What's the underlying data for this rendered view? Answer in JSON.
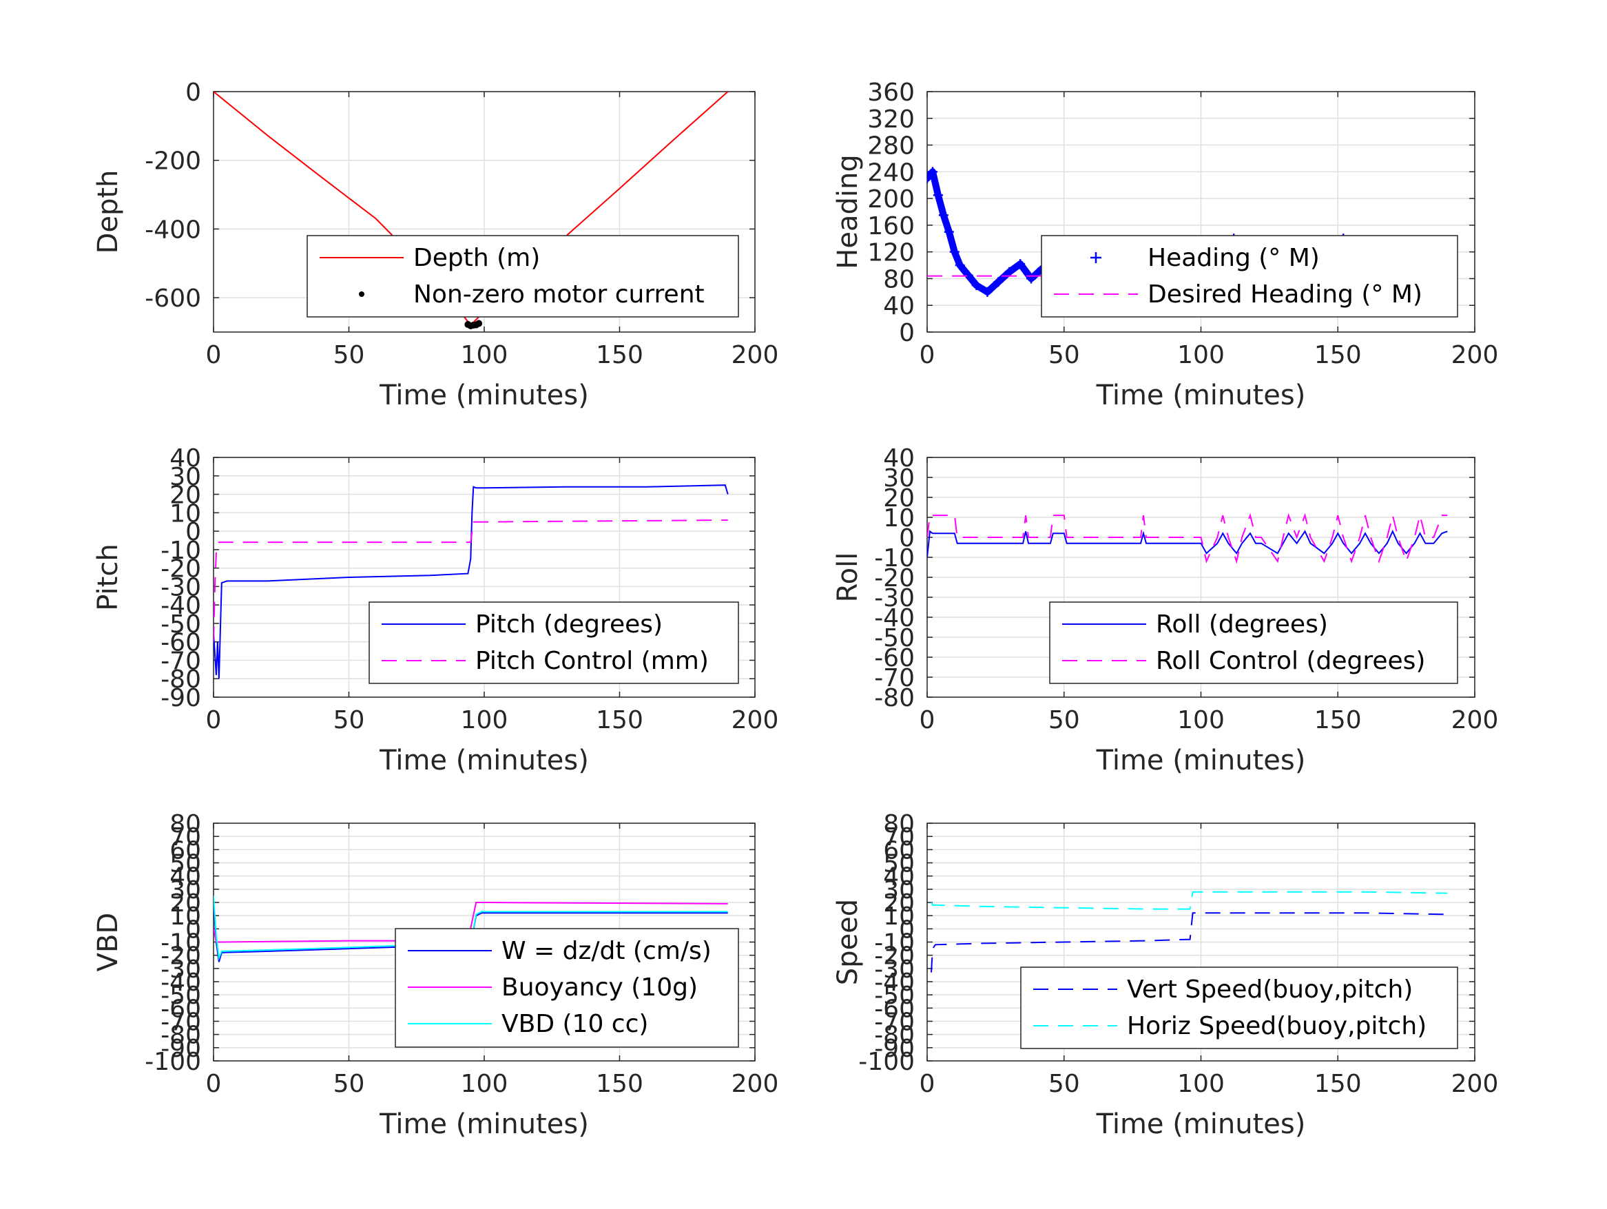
{
  "chart_data": [
    {
      "id": "depth",
      "type": "line",
      "title": "",
      "xlabel": "Time (minutes)",
      "ylabel": "Depth",
      "xlim": [
        0,
        200
      ],
      "ylim": [
        -700,
        0
      ],
      "xticks": [
        0,
        50,
        100,
        150,
        200
      ],
      "xtick_labels": [
        "0",
        "50",
        "100",
        "150",
        "200"
      ],
      "yticks": [
        -600,
        -400,
        -200,
        0
      ],
      "ytick_labels": [
        "-600",
        "-400",
        "-200",
        "0"
      ],
      "grid": true,
      "legend_position": "bottom-right",
      "series": [
        {
          "name": "Depth (m)",
          "color": "#ff0000",
          "style": "solid",
          "x": [
            0,
            20,
            40,
            60,
            80,
            95,
            110,
            130,
            150,
            170,
            190
          ],
          "y": [
            0,
            -128,
            -250,
            -370,
            -530,
            -680,
            -560,
            -422,
            -282,
            -140,
            0
          ]
        },
        {
          "name": "Non-zero motor current",
          "color": "#000000",
          "style": "dots",
          "x": [
            94,
            95,
            96,
            97,
            98
          ],
          "y": [
            -678,
            -682,
            -680,
            -679,
            -675
          ]
        }
      ]
    },
    {
      "id": "heading",
      "type": "line",
      "title": "",
      "xlabel": "Time (minutes)",
      "ylabel": "Heading",
      "xlim": [
        0,
        200
      ],
      "ylim": [
        0,
        360
      ],
      "xticks": [
        0,
        50,
        100,
        150,
        200
      ],
      "xtick_labels": [
        "0",
        "50",
        "100",
        "150",
        "200"
      ],
      "yticks": [
        0,
        40,
        80,
        120,
        160,
        200,
        240,
        280,
        320,
        360
      ],
      "ytick_labels": [
        "0",
        "40",
        "80",
        "120",
        "160",
        "200",
        "240",
        "280",
        "320",
        "360"
      ],
      "grid": true,
      "legend_position": "bottom-right",
      "series": [
        {
          "name": "Heading (° M)",
          "color": "#0000ff",
          "style": "markers",
          "x": [
            0,
            2,
            4,
            6,
            8,
            10,
            12,
            15,
            18,
            22,
            26,
            30,
            34,
            38,
            42,
            46,
            50,
            55,
            60,
            65,
            70,
            75,
            80,
            85,
            90,
            95,
            100,
            105,
            108,
            112,
            116,
            120,
            124,
            128,
            132,
            136,
            140,
            144,
            148,
            152,
            155,
            158,
            161,
            164,
            167,
            170,
            174,
            178,
            182,
            186,
            190
          ],
          "y": [
            230,
            240,
            205,
            175,
            150,
            120,
            100,
            85,
            70,
            60,
            75,
            90,
            102,
            80,
            95,
            105,
            80,
            85,
            92,
            98,
            96,
            84,
            86,
            88,
            90,
            92,
            94,
            120,
            50,
            140,
            45,
            125,
            55,
            130,
            60,
            110,
            70,
            115,
            60,
            140,
            130,
            30,
            110,
            40,
            120,
            60,
            105,
            65,
            90,
            70,
            80
          ]
        },
        {
          "name": "Desired Heading (° M)",
          "color": "#ff00ff",
          "style": "dashed",
          "x": [
            0,
            190
          ],
          "y": [
            84,
            84
          ]
        }
      ]
    },
    {
      "id": "pitch",
      "type": "line",
      "title": "",
      "xlabel": "Time (minutes)",
      "ylabel": "Pitch",
      "xlim": [
        0,
        200
      ],
      "ylim": [
        -90,
        40
      ],
      "xticks": [
        0,
        50,
        100,
        150,
        200
      ],
      "xtick_labels": [
        "0",
        "50",
        "100",
        "150",
        "200"
      ],
      "yticks": [
        -90,
        -80,
        -70,
        -60,
        -50,
        -40,
        -30,
        -20,
        -10,
        0,
        10,
        20,
        30,
        40
      ],
      "ytick_labels": [
        "-90",
        "-80",
        "-70",
        "-60",
        "-50",
        "-40",
        "-30",
        "-20",
        "-10",
        "0",
        "10",
        "20",
        "30",
        "40"
      ],
      "grid": true,
      "legend_position": "bottom-right",
      "series": [
        {
          "name": "Pitch (degrees)",
          "color": "#0000ff",
          "style": "solid",
          "x": [
            0,
            1,
            1.5,
            2,
            3,
            5,
            20,
            50,
            80,
            94,
            95,
            95.5,
            96,
            97,
            100,
            130,
            160,
            189,
            190
          ],
          "y": [
            -55,
            -78,
            -60,
            -80,
            -28,
            -27,
            -27,
            -25,
            -24,
            -23,
            -15,
            10,
            24,
            23.5,
            23.5,
            24,
            24,
            25,
            20
          ]
        },
        {
          "name": "Pitch Control (mm)",
          "color": "#ff00ff",
          "style": "dashed",
          "x": [
            0,
            0.5,
            1,
            2,
            3,
            50,
            95,
            96,
            97,
            190
          ],
          "y": [
            -60,
            -30,
            -12,
            -6,
            -6,
            -6,
            -6,
            5,
            5,
            6
          ]
        }
      ]
    },
    {
      "id": "roll",
      "type": "line",
      "title": "",
      "xlabel": "Time (minutes)",
      "ylabel": "Roll",
      "xlim": [
        0,
        200
      ],
      "ylim": [
        -80,
        40
      ],
      "xticks": [
        0,
        50,
        100,
        150,
        200
      ],
      "xtick_labels": [
        "0",
        "50",
        "100",
        "150",
        "200"
      ],
      "yticks": [
        -80,
        -70,
        -60,
        -50,
        -40,
        -30,
        -20,
        -10,
        0,
        10,
        20,
        30,
        40
      ],
      "ytick_labels": [
        "-80",
        "-70",
        "-60",
        "-50",
        "-40",
        "-30",
        "-20",
        "-10",
        "0",
        "10",
        "20",
        "30",
        "40"
      ],
      "grid": true,
      "legend_position": "bottom-right",
      "series": [
        {
          "name": "Roll (degrees)",
          "color": "#0000ff",
          "style": "solid",
          "x": [
            0,
            1,
            2,
            3,
            10,
            11,
            35,
            36,
            37,
            45,
            46,
            50,
            51,
            78,
            79,
            80,
            100,
            102,
            106,
            108,
            110,
            113,
            115,
            118,
            120,
            122,
            128,
            130,
            132,
            135,
            138,
            140,
            145,
            148,
            150,
            152,
            155,
            158,
            160,
            162,
            165,
            168,
            170,
            172,
            175,
            178,
            180,
            182,
            185,
            188,
            190
          ],
          "y": [
            -10,
            3,
            2,
            2,
            2,
            -3,
            -3,
            3,
            -3,
            -3,
            2,
            2,
            -3,
            -3,
            2,
            -3,
            -3,
            -8,
            -3,
            2,
            -3,
            -8,
            -3,
            2,
            -3,
            -3,
            -8,
            -3,
            2,
            -3,
            3,
            -3,
            -8,
            -3,
            2,
            -3,
            -8,
            -3,
            2,
            -3,
            -8,
            -3,
            3,
            -3,
            -8,
            -3,
            2,
            -3,
            -3,
            2,
            3
          ]
        },
        {
          "name": "Roll Control (degrees)",
          "color": "#ff00ff",
          "style": "dashed",
          "x": [
            0,
            1,
            2,
            10,
            11,
            35,
            36,
            37,
            45,
            46,
            50,
            51,
            78,
            79,
            80,
            100,
            102,
            106,
            108,
            110,
            113,
            115,
            118,
            120,
            122,
            128,
            130,
            132,
            135,
            138,
            140,
            145,
            148,
            150,
            152,
            155,
            158,
            160,
            162,
            165,
            168,
            170,
            172,
            175,
            178,
            180,
            182,
            185,
            188,
            190
          ],
          "y": [
            0,
            11,
            11,
            11,
            0,
            0,
            11,
            0,
            0,
            11,
            11,
            0,
            0,
            11,
            0,
            0,
            -12,
            0,
            11,
            0,
            -12,
            0,
            11,
            0,
            0,
            -12,
            0,
            11,
            0,
            11,
            0,
            -12,
            0,
            11,
            0,
            -12,
            0,
            11,
            0,
            -12,
            0,
            11,
            0,
            -12,
            0,
            11,
            0,
            0,
            11,
            11
          ]
        }
      ]
    },
    {
      "id": "vbd",
      "type": "line",
      "title": "",
      "xlabel": "Time (minutes)",
      "ylabel": "VBD",
      "xlim": [
        0,
        200
      ],
      "ylim": [
        -100,
        80
      ],
      "xticks": [
        0,
        50,
        100,
        150,
        200
      ],
      "xtick_labels": [
        "0",
        "50",
        "100",
        "150",
        "200"
      ],
      "yticks": [
        -100,
        -90,
        -80,
        -70,
        -60,
        -50,
        -40,
        -30,
        -20,
        -10,
        0,
        10,
        20,
        30,
        40,
        50,
        60,
        70,
        80
      ],
      "ytick_labels": [
        "-100",
        "-90",
        "-80",
        "-70",
        "-60",
        "-50",
        "-40",
        "-30",
        "-20",
        "-10",
        "0",
        "10",
        "20",
        "30",
        "40",
        "50",
        "60",
        "70",
        "80"
      ],
      "grid": true,
      "legend_position": "bottom-right",
      "series": [
        {
          "name": "W = dz/dt (cm/s)",
          "color": "#0000ff",
          "style": "solid",
          "x": [
            0,
            1,
            2,
            3,
            20,
            50,
            80,
            95,
            97,
            99,
            130,
            160,
            190
          ],
          "y": [
            20,
            -10,
            -25,
            -18,
            -17,
            -15,
            -13,
            -12,
            10,
            12,
            12,
            12,
            12
          ]
        },
        {
          "name": "Buoyancy (10g)",
          "color": "#ff00ff",
          "style": "solid",
          "x": [
            0,
            1,
            2,
            3,
            50,
            94,
            97,
            100,
            190
          ],
          "y": [
            0,
            -10,
            -10,
            -10,
            -9,
            -9,
            20,
            20,
            19
          ]
        },
        {
          "name": "VBD (10 cc)",
          "color": "#00ffff",
          "style": "solid",
          "x": [
            0,
            1,
            2,
            3,
            20,
            50,
            80,
            95,
            97,
            99,
            130,
            160,
            190
          ],
          "y": [
            25,
            -5,
            -22,
            -17,
            -16,
            -14,
            -12,
            -11,
            11,
            13,
            13,
            13,
            13
          ]
        }
      ]
    },
    {
      "id": "speed",
      "type": "line",
      "title": "",
      "xlabel": "Time (minutes)",
      "ylabel": "Speed",
      "xlim": [
        0,
        200
      ],
      "ylim": [
        -100,
        80
      ],
      "xticks": [
        0,
        50,
        100,
        150,
        200
      ],
      "xtick_labels": [
        "0",
        "50",
        "100",
        "150",
        "200"
      ],
      "yticks": [
        -100,
        -90,
        -80,
        -70,
        -60,
        -50,
        -40,
        -30,
        -20,
        -10,
        0,
        10,
        20,
        30,
        40,
        50,
        60,
        70,
        80
      ],
      "ytick_labels": [
        "-100",
        "-90",
        "-80",
        "-70",
        "-60",
        "-50",
        "-40",
        "-30",
        "-20",
        "-10",
        "0",
        "10",
        "20",
        "30",
        "40",
        "50",
        "60",
        "70",
        "80"
      ],
      "grid": true,
      "legend_position": "bottom-right",
      "series": [
        {
          "name": "Vert Speed(buoy,pitch)",
          "color": "#0000ff",
          "style": "dashed",
          "x": [
            1.5,
            2,
            3,
            20,
            50,
            80,
            95,
            96,
            97,
            130,
            160,
            190
          ],
          "y": [
            -33,
            -15,
            -12,
            -11,
            -10,
            -9,
            -8,
            -8,
            12,
            12,
            12,
            11
          ]
        },
        {
          "name": "Horiz Speed(buoy,pitch)",
          "color": "#00ffff",
          "style": "dashed",
          "x": [
            1.5,
            2,
            3,
            20,
            50,
            80,
            95,
            96,
            97,
            130,
            160,
            190
          ],
          "y": [
            20,
            18,
            18,
            17,
            16,
            15,
            15,
            15,
            28,
            28,
            28,
            27
          ]
        }
      ]
    }
  ]
}
